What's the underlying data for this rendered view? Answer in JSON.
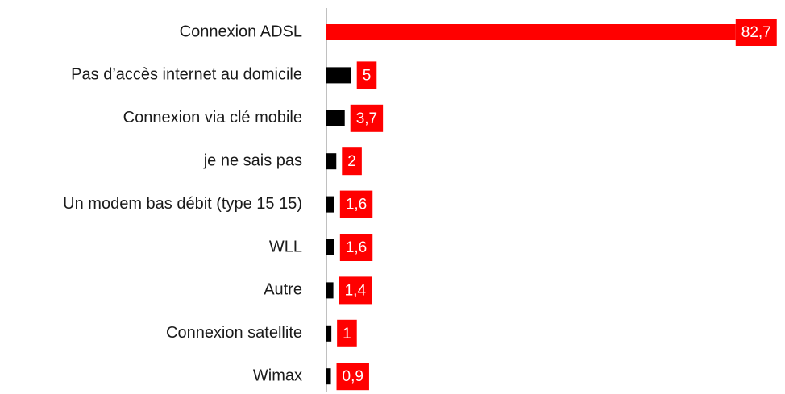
{
  "chart_data": {
    "type": "barh",
    "categories": [
      "Connexion ADSL",
      "Pas d’accès internet au domicile",
      "Connexion via clé mobile",
      "je ne sais pas",
      "Un modem bas débit (type 15 15)",
      "WLL",
      "Autre",
      "Connexion satellite",
      "Wimax"
    ],
    "values": [
      82.7,
      5,
      3.7,
      2,
      1.6,
      1.6,
      1.4,
      1,
      0.9
    ],
    "value_labels": [
      "82,7",
      "5",
      "3,7",
      "2",
      "1,6",
      "1,6",
      "1,4",
      "1",
      "0,9"
    ],
    "colors": [
      "#ff0000",
      "#000000",
      "#000000",
      "#000000",
      "#000000",
      "#000000",
      "#000000",
      "#000000",
      "#000000"
    ],
    "label_color": "#ff0000",
    "xlim": [
      0,
      90
    ]
  }
}
